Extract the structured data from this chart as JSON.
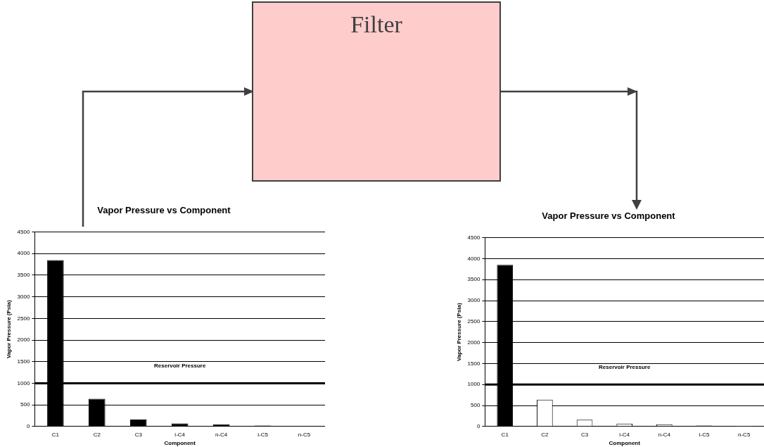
{
  "chart_data": [
    {
      "type": "other",
      "title": "Filter",
      "color": "#ffcccc"
    },
    {
      "type": "bar",
      "title": "Vapor Pressure vs Component",
      "xlabel": "Component",
      "ylabel": "Vapor Pressure (Psia)",
      "categories": [
        "C1",
        "C2",
        "C3",
        "i-C4",
        "n-C4",
        "i-C5",
        "n-C5"
      ],
      "values": [
        3850,
        640,
        160,
        70,
        50,
        20,
        15
      ],
      "color": "#000000",
      "ylim": [
        0,
        4500
      ],
      "yticks": [
        0,
        500,
        1000,
        1500,
        2000,
        2500,
        3000,
        3500,
        4000,
        4500
      ],
      "grid": "y",
      "legend": false,
      "ref_lines": [
        {
          "axis": "y",
          "value": 1000,
          "label": "Reservoir Pressure",
          "color": "#000000"
        }
      ]
    },
    {
      "type": "bar",
      "title": "Vapor Pressure vs Component",
      "xlabel": "Component",
      "ylabel": "Vapor Pressure (Psia)",
      "categories": [
        "C1",
        "C2",
        "C3",
        "i-C4",
        "n-C4",
        "i-C5",
        "n-C5"
      ],
      "values": [
        3850,
        640,
        160,
        70,
        50,
        20,
        15
      ],
      "colors": [
        "#000000",
        "#ffffff",
        "#ffffff",
        "#ffffff",
        "#ffffff",
        "#ffffff",
        "#ffffff"
      ],
      "ylim": [
        0,
        4500
      ],
      "yticks": [
        0,
        500,
        1000,
        1500,
        2000,
        2500,
        3000,
        3500,
        4000,
        4500
      ],
      "grid": "y",
      "legend": false,
      "ref_lines": [
        {
          "axis": "y",
          "value": 1000,
          "label": "Reservoir Pressure",
          "color": "#000000"
        }
      ]
    }
  ]
}
